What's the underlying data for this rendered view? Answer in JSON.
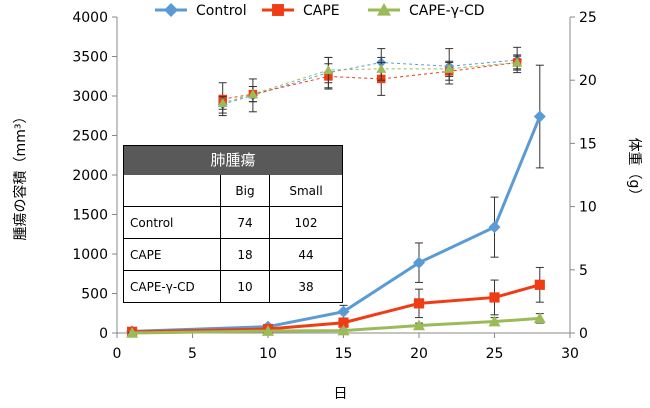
{
  "chart_data": {
    "type": "line",
    "xlabel": "日",
    "ylabel": "腫瘍の容積（mm³）",
    "y2label": "体重（g）",
    "xlim": [
      0,
      30
    ],
    "ylim": [
      0,
      4000
    ],
    "y2lim": [
      0,
      25
    ],
    "x_ticks": [
      "0",
      "5",
      "10",
      "15",
      "20",
      "25",
      "30"
    ],
    "y_ticks": [
      "0",
      "500",
      "1000",
      "1500",
      "2000",
      "2500",
      "3000",
      "3500",
      "4000"
    ],
    "y2_ticks": [
      "0",
      "5",
      "10",
      "15",
      "20",
      "25"
    ],
    "legend_position": "top",
    "series": [
      {
        "name": "Control",
        "color": "#5B9BD5",
        "marker": "diamond",
        "axis": "left",
        "x": [
          1,
          10,
          15,
          20,
          25,
          28
        ],
        "y": [
          20,
          80,
          270,
          890,
          1340,
          2740
        ],
        "err": [
          10,
          20,
          80,
          250,
          380,
          650
        ]
      },
      {
        "name": "CAPE",
        "color": "#F03C14",
        "marker": "square",
        "axis": "left",
        "x": [
          1,
          10,
          15,
          20,
          25,
          28
        ],
        "y": [
          15,
          50,
          130,
          375,
          450,
          610
        ],
        "err": [
          5,
          20,
          40,
          180,
          220,
          220
        ]
      },
      {
        "name": "CAPE-γ-CD",
        "color": "#9BBB59",
        "marker": "triangle",
        "axis": "left",
        "x": [
          1,
          10,
          15,
          20,
          25,
          28
        ],
        "y": [
          0,
          25,
          30,
          95,
          145,
          185
        ],
        "err": [
          5,
          15,
          20,
          30,
          50,
          60
        ]
      }
    ],
    "weight_series": [
      {
        "name": "Control",
        "color": "#5B9BD5",
        "marker": "diamond",
        "axis": "right",
        "x": [
          7,
          9,
          14,
          17.5,
          22,
          26.5
        ],
        "y": [
          18.1,
          18.8,
          20.6,
          21.4,
          21.1,
          21.6
        ],
        "err": [
          0.7,
          1.3,
          1.2,
          1.1,
          1.4,
          1.0
        ]
      },
      {
        "name": "CAPE",
        "color": "#F03C14",
        "marker": "square",
        "axis": "right",
        "x": [
          7,
          9,
          14,
          17.5,
          22,
          26.5
        ],
        "y": [
          18.5,
          18.9,
          20.3,
          20.1,
          20.7,
          21.4
        ],
        "err": [
          1.3,
          0.6,
          1.0,
          1.3,
          0.7,
          0.6
        ]
      },
      {
        "name": "CAPE-γ-CD",
        "color": "#9BBB59",
        "marker": "triangle",
        "axis": "right",
        "x": [
          7,
          9,
          14,
          17.5,
          22,
          26.5
        ],
        "y": [
          18.2,
          18.9,
          20.8,
          20.9,
          20.9,
          21.4
        ],
        "err": [
          0.5,
          0.6,
          1.0,
          0.9,
          0.6,
          0.5
        ]
      }
    ]
  },
  "inset_table": {
    "title": "肺腫瘍",
    "headers": [
      "",
      "Big",
      "Small"
    ],
    "rows": [
      [
        "Control",
        "74",
        "102"
      ],
      [
        "CAPE",
        "18",
        "44"
      ],
      [
        "CAPE-γ-CD",
        "10",
        "38"
      ]
    ]
  }
}
